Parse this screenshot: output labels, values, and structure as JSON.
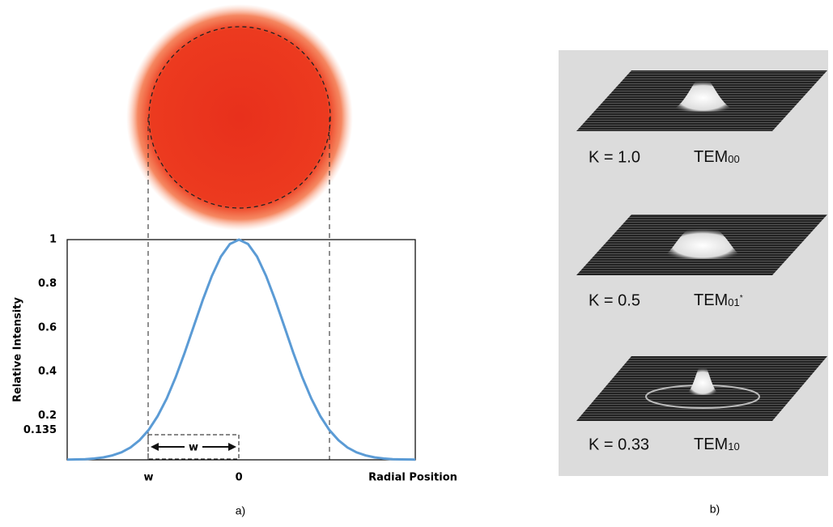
{
  "chart_data": {
    "type": "line",
    "ylabel": "Relative Intensity",
    "xlabel": "Radial Position",
    "x": [
      -1.9,
      -1.8,
      -1.7,
      -1.6,
      -1.5,
      -1.4,
      -1.3,
      -1.2,
      -1.1,
      -1.0,
      -0.9,
      -0.8,
      -0.7,
      -0.6,
      -0.5,
      -0.4,
      -0.3,
      -0.2,
      -0.1,
      0,
      0.1,
      0.2,
      0.3,
      0.4,
      0.5,
      0.6,
      0.7,
      0.8,
      0.9,
      1.0,
      1.1,
      1.2,
      1.3,
      1.4,
      1.5,
      1.6,
      1.7,
      1.8,
      1.95
    ],
    "values": [
      0.001,
      0.002,
      0.003,
      0.006,
      0.011,
      0.02,
      0.034,
      0.056,
      0.089,
      0.135,
      0.198,
      0.278,
      0.375,
      0.487,
      0.607,
      0.726,
      0.835,
      0.923,
      0.98,
      1,
      0.98,
      0.923,
      0.835,
      0.726,
      0.607,
      0.487,
      0.375,
      0.278,
      0.198,
      0.135,
      0.089,
      0.056,
      0.034,
      0.02,
      0.011,
      0.006,
      0.003,
      0.002,
      0.001
    ],
    "color": "#5b9bd5",
    "xlim": [
      -1.9,
      1.95
    ],
    "ylim": [
      0,
      1
    ],
    "xticks": [
      {
        "value": -1,
        "label": "w"
      },
      0
    ],
    "yticks": [
      0.135,
      0.2,
      0.4,
      0.6,
      0.8,
      1
    ],
    "annotation": "w",
    "panel_label": "a)"
  },
  "panel_b": {
    "label": "b)",
    "modes": [
      {
        "k": "K = 1.0",
        "mode": "TEM",
        "index": "00"
      },
      {
        "k": "K = 0.5",
        "mode": "TEM",
        "index": "01",
        "mark": "*"
      },
      {
        "k": "K = 0.33",
        "mode": "TEM",
        "index": "10"
      }
    ]
  }
}
